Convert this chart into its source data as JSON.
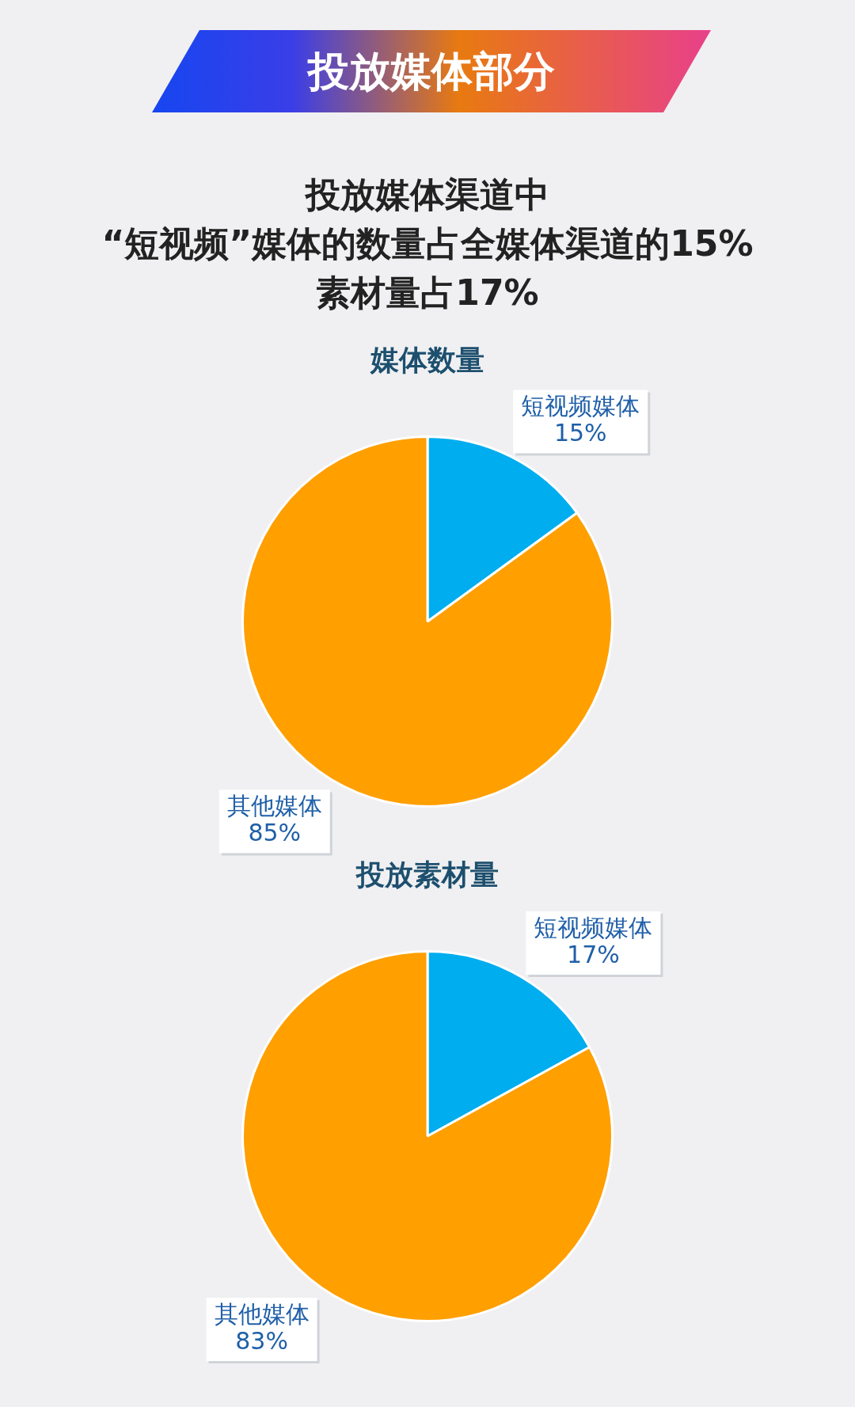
{
  "chart_data": [
    {
      "type": "other",
      "title": "投放媒体部分",
      "subtitle": "投放媒体渠道中\n“短视频”媒体的数量占全媒体渠道的15%\n素材量占17%"
    },
    {
      "type": "pie",
      "title": "媒体数量",
      "categories": [
        "短视频媒体",
        "其他媒体"
      ],
      "values": [
        15,
        85
      ],
      "colors": [
        "#00adef",
        "#ff9f00"
      ],
      "value_labels": [
        "15%",
        "85%"
      ]
    },
    {
      "type": "pie",
      "title": "投放素材量",
      "categories": [
        "短视频媒体",
        "其他媒体"
      ],
      "values": [
        17,
        83
      ],
      "colors": [
        "#00adef",
        "#ff9f00"
      ],
      "value_labels": [
        "17%",
        "83%"
      ]
    }
  ]
}
